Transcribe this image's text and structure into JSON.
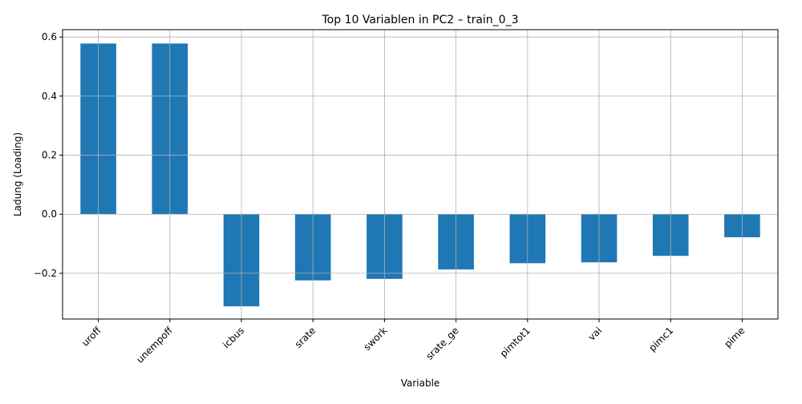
{
  "chart_data": {
    "type": "bar",
    "title": "Top 10 Variablen in PC2 – train_0_3",
    "xlabel": "Variable",
    "ylabel": "Ladung (Loading)",
    "categories": [
      "uroff",
      "unempoff",
      "icbus",
      "srate",
      "swork",
      "srate_ge",
      "pimtot1",
      "vai",
      "pimc1",
      "pime"
    ],
    "values": [
      0.578,
      0.578,
      -0.312,
      -0.224,
      -0.219,
      -0.187,
      -0.166,
      -0.163,
      -0.141,
      -0.078
    ],
    "ylim": [
      -0.355,
      0.625
    ],
    "yticks": [
      -0.2,
      0.0,
      0.2,
      0.4,
      0.6
    ],
    "ytick_labels": [
      "−0.2",
      "0.0",
      "0.2",
      "0.4",
      "0.6"
    ],
    "grid": true,
    "bar_color": "#1f77b4",
    "grid_color": "#b0b0b0"
  }
}
